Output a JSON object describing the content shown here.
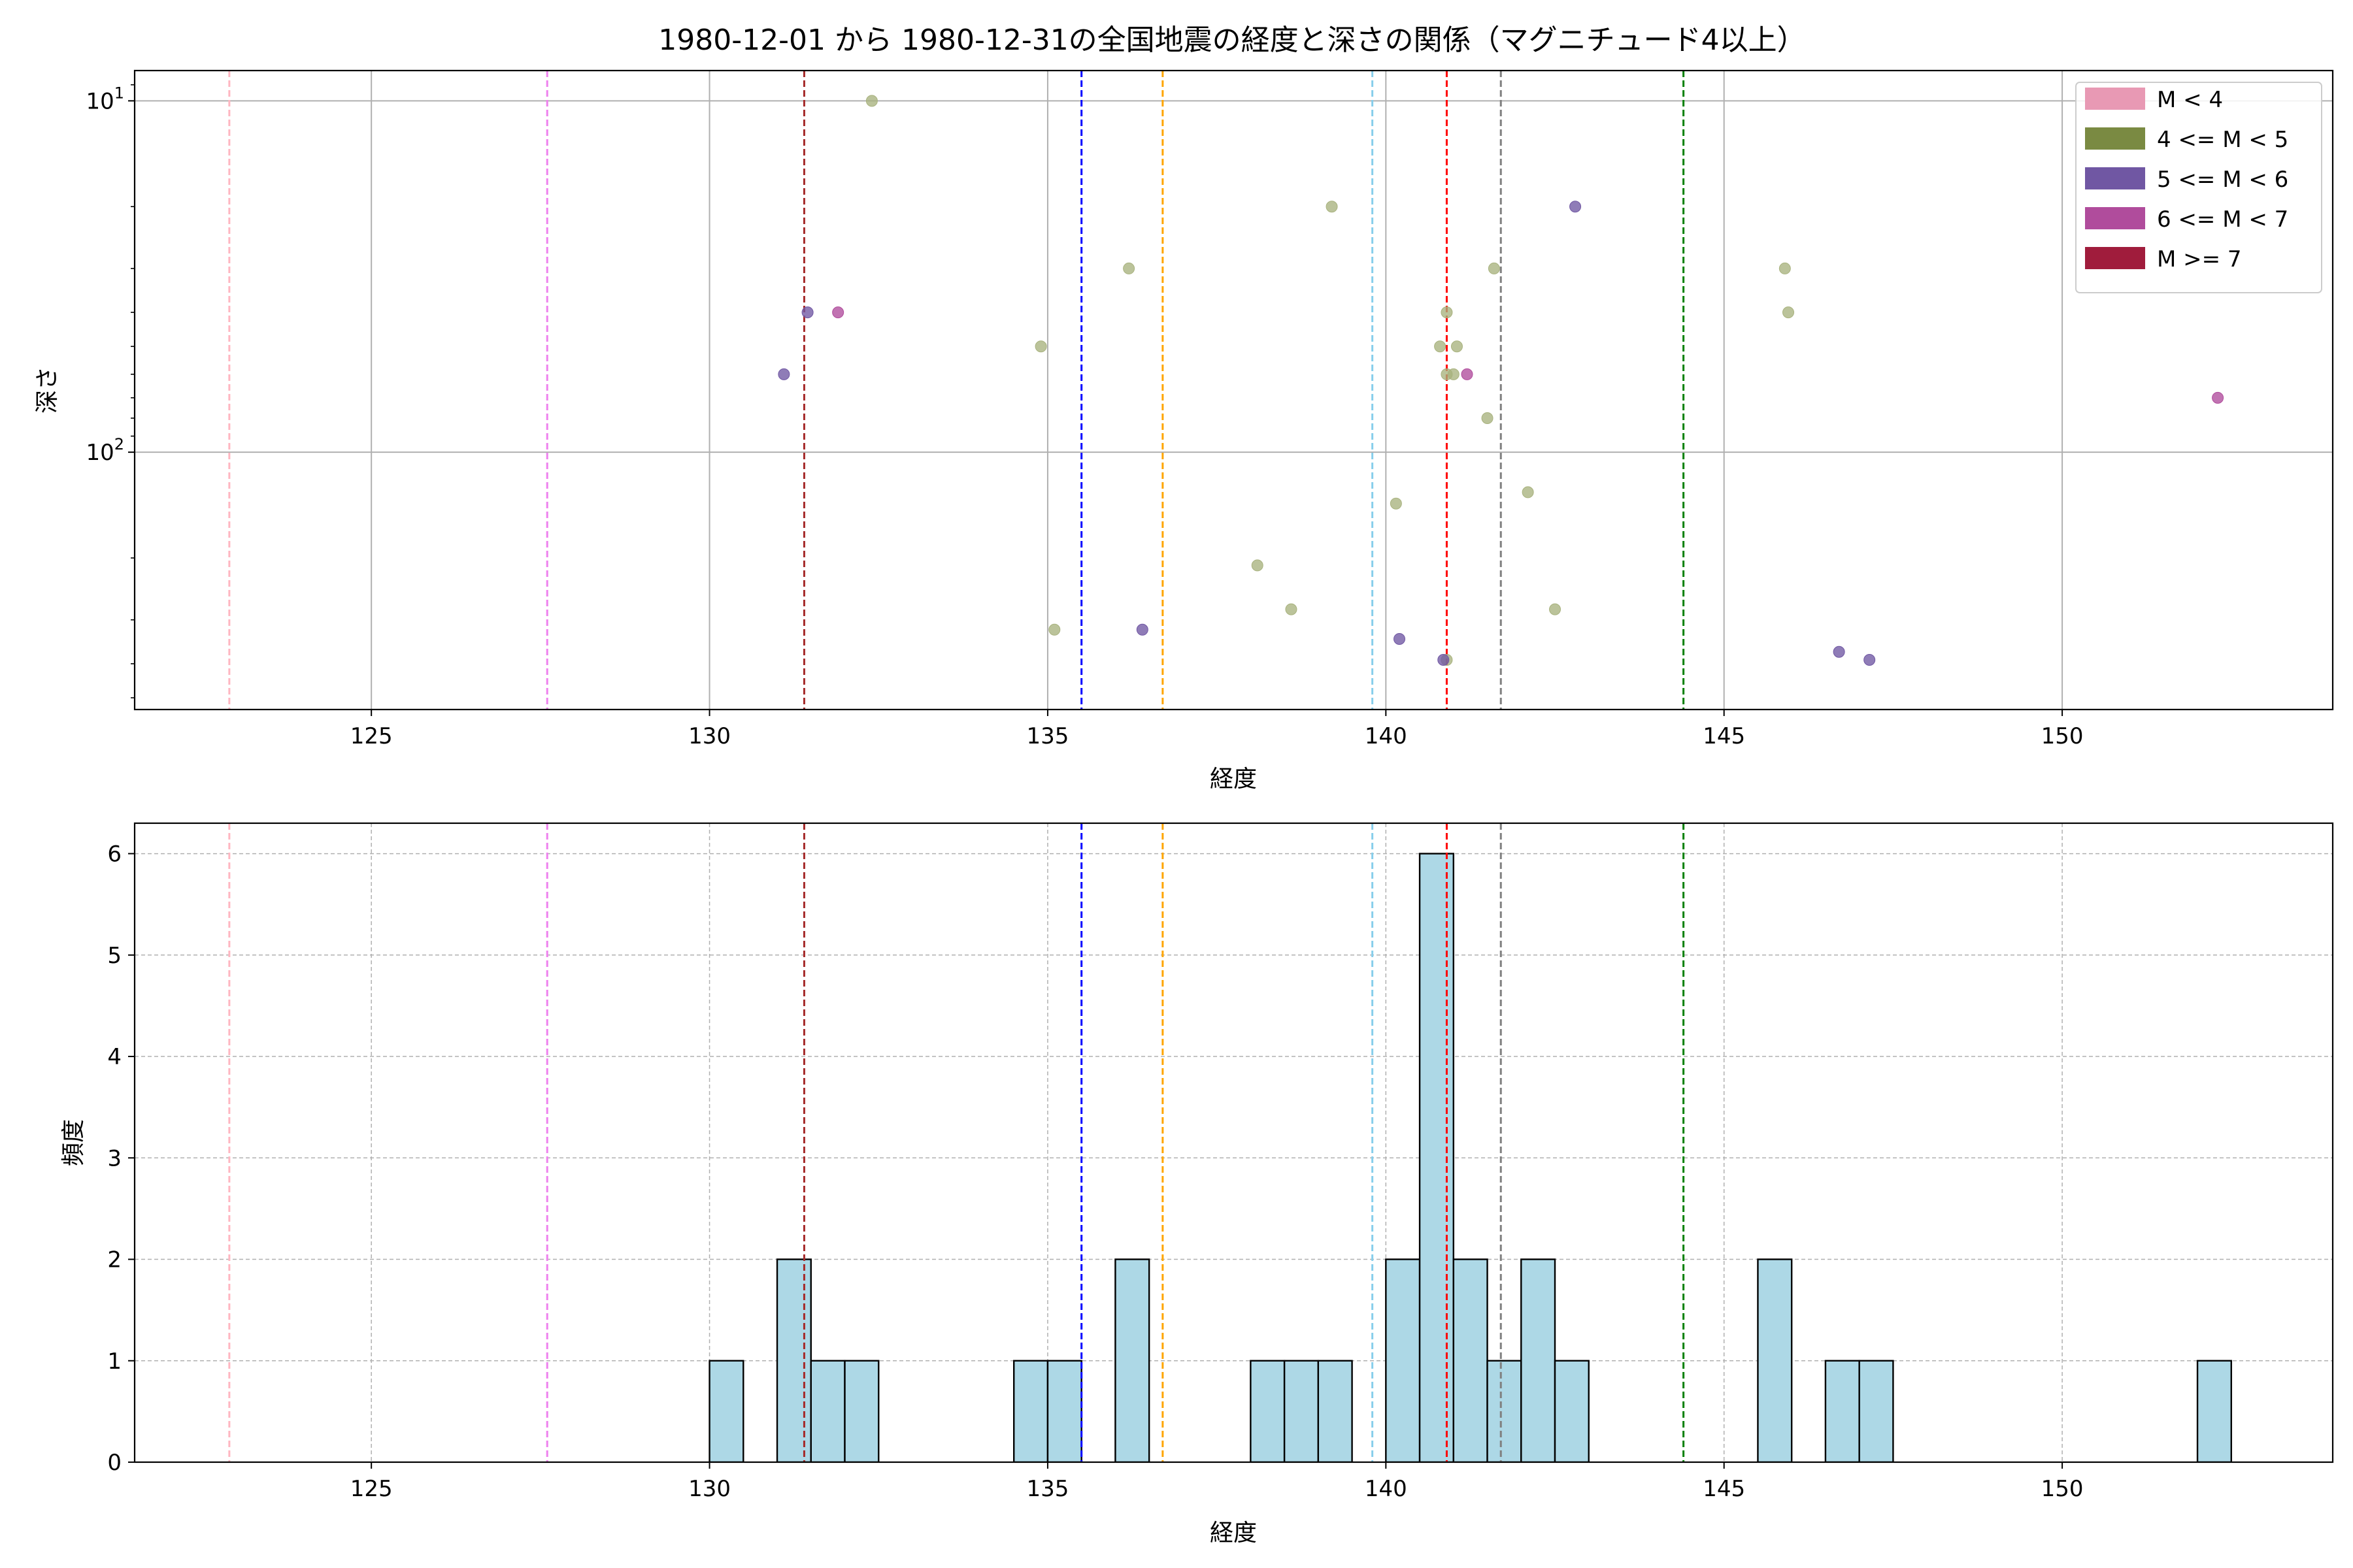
{
  "chart_data": [
    {
      "type": "scatter",
      "title": "1980-12-01 から 1980-12-31の全国地震の経度と深さの関係（マグニチュード4以上）",
      "xlabel": "経度",
      "ylabel": "深さ",
      "xlim": [
        121.5,
        154
      ],
      "ylim": [
        8.2,
        540
      ],
      "yscale": "log",
      "y_inverted": true,
      "x_ticks": [
        "125",
        "130",
        "135",
        "140",
        "145",
        "150"
      ],
      "y_ticks": [
        {
          "value": 10,
          "base": "10",
          "exp": "1"
        },
        {
          "value": 100,
          "base": "10",
          "exp": "2"
        }
      ],
      "grid": true,
      "legend_position": "top-right",
      "legend": [
        {
          "label": "M < 4",
          "color": "#e899b4"
        },
        {
          "label": "4 <= M < 5",
          "color": "#7a8a42"
        },
        {
          "label": "5 <= M < 6",
          "color": "#7057a3"
        },
        {
          "label": "6 <= M < 7",
          "color": "#b04c9c"
        },
        {
          "label": "M >= 7",
          "color": "#a01c3c"
        }
      ],
      "series": [
        {
          "color": "#a8b27e",
          "points": [
            [
              132.4,
              10
            ],
            [
              139.2,
              20
            ],
            [
              136.2,
              30
            ],
            [
              141.6,
              30
            ],
            [
              145.9,
              30
            ],
            [
              140.9,
              40
            ],
            [
              145.95,
              40
            ],
            [
              134.9,
              50
            ],
            [
              140.8,
              50
            ],
            [
              141.05,
              50
            ],
            [
              141.0,
              60
            ],
            [
              140.9,
              60
            ],
            [
              141.5,
              80
            ],
            [
              142.1,
              130
            ],
            [
              140.15,
              140
            ],
            [
              138.1,
              210
            ],
            [
              138.6,
              280
            ],
            [
              142.5,
              280
            ],
            [
              135.1,
              320
            ],
            [
              140.9,
              390
            ]
          ]
        },
        {
          "color": "#7057a3",
          "points": [
            [
              142.8,
              20
            ],
            [
              131.45,
              40
            ],
            [
              131.1,
              60
            ],
            [
              136.4,
              320
            ],
            [
              140.2,
              340
            ],
            [
              140.85,
              390
            ],
            [
              146.7,
              370
            ],
            [
              147.15,
              390
            ]
          ]
        },
        {
          "color": "#b04c9c",
          "points": [
            [
              131.9,
              40
            ],
            [
              141.2,
              60
            ],
            [
              152.3,
              70
            ]
          ]
        }
      ],
      "vlines": [
        {
          "x": 122.9,
          "color": "#ffb6c1"
        },
        {
          "x": 127.6,
          "color": "#ee82ee"
        },
        {
          "x": 131.4,
          "color": "#a52a2a"
        },
        {
          "x": 135.5,
          "color": "#0000ff"
        },
        {
          "x": 136.7,
          "color": "#ffa500"
        },
        {
          "x": 139.8,
          "color": "#87ceeb"
        },
        {
          "x": 140.9,
          "color": "#ff0000"
        },
        {
          "x": 141.7,
          "color": "#808080"
        },
        {
          "x": 144.4,
          "color": "#008000"
        }
      ]
    },
    {
      "type": "bar",
      "xlabel": "経度",
      "ylabel": "頻度",
      "xlim": [
        121.5,
        154
      ],
      "ylim": [
        0,
        6.3
      ],
      "x_ticks": [
        "125",
        "130",
        "135",
        "140",
        "145",
        "150"
      ],
      "y_ticks": [
        "0",
        "1",
        "2",
        "3",
        "4",
        "5",
        "6"
      ],
      "grid": true,
      "bar_color": "#add8e6",
      "bar_edge_color": "#000000",
      "bin_width": 0.5,
      "bins": [
        {
          "x": 130.0,
          "count": 1
        },
        {
          "x": 131.0,
          "count": 2
        },
        {
          "x": 131.5,
          "count": 1
        },
        {
          "x": 132.0,
          "count": 1
        },
        {
          "x": 134.5,
          "count": 1
        },
        {
          "x": 135.0,
          "count": 1
        },
        {
          "x": 136.0,
          "count": 2
        },
        {
          "x": 138.0,
          "count": 1
        },
        {
          "x": 138.5,
          "count": 1
        },
        {
          "x": 139.0,
          "count": 1
        },
        {
          "x": 140.0,
          "count": 2
        },
        {
          "x": 140.5,
          "count": 6
        },
        {
          "x": 141.0,
          "count": 2
        },
        {
          "x": 141.5,
          "count": 1
        },
        {
          "x": 142.0,
          "count": 2
        },
        {
          "x": 142.5,
          "count": 1
        },
        {
          "x": 145.5,
          "count": 2
        },
        {
          "x": 146.5,
          "count": 1
        },
        {
          "x": 147.0,
          "count": 1
        },
        {
          "x": 152.0,
          "count": 1
        }
      ],
      "vlines": [
        {
          "x": 122.9,
          "color": "#ffb6c1"
        },
        {
          "x": 127.6,
          "color": "#ee82ee"
        },
        {
          "x": 131.4,
          "color": "#a52a2a"
        },
        {
          "x": 135.5,
          "color": "#0000ff"
        },
        {
          "x": 136.7,
          "color": "#ffa500"
        },
        {
          "x": 139.8,
          "color": "#87ceeb"
        },
        {
          "x": 140.9,
          "color": "#ff0000"
        },
        {
          "x": 141.7,
          "color": "#808080"
        },
        {
          "x": 144.4,
          "color": "#008000"
        }
      ]
    }
  ]
}
